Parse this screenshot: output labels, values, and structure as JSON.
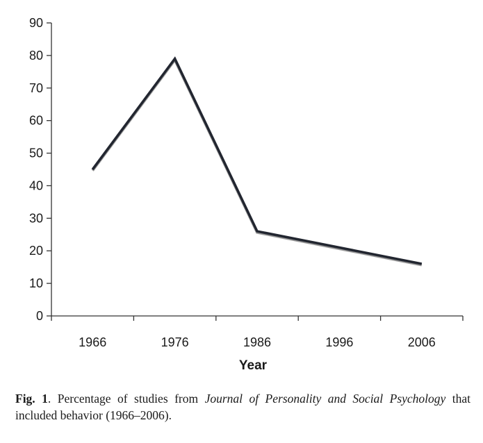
{
  "chart_data": {
    "type": "line",
    "x": [
      "1966",
      "1976",
      "1986",
      "1996",
      "2006"
    ],
    "series": [
      {
        "values": [
          45,
          79,
          26,
          21,
          16
        ],
        "color": "#222630"
      }
    ],
    "xlabel": "Year",
    "ylabel": "",
    "ylim": [
      0,
      90
    ],
    "yticks": [
      0,
      10,
      20,
      30,
      40,
      50,
      60,
      70,
      80,
      90
    ],
    "grid": false,
    "legend": "none"
  },
  "caption": {
    "label": "Fig. 1",
    "part1": ". Percentage of studies from ",
    "journal": "Journal of Personality and Social Psychology",
    "part2": " that included behavior (1966–2006)."
  }
}
